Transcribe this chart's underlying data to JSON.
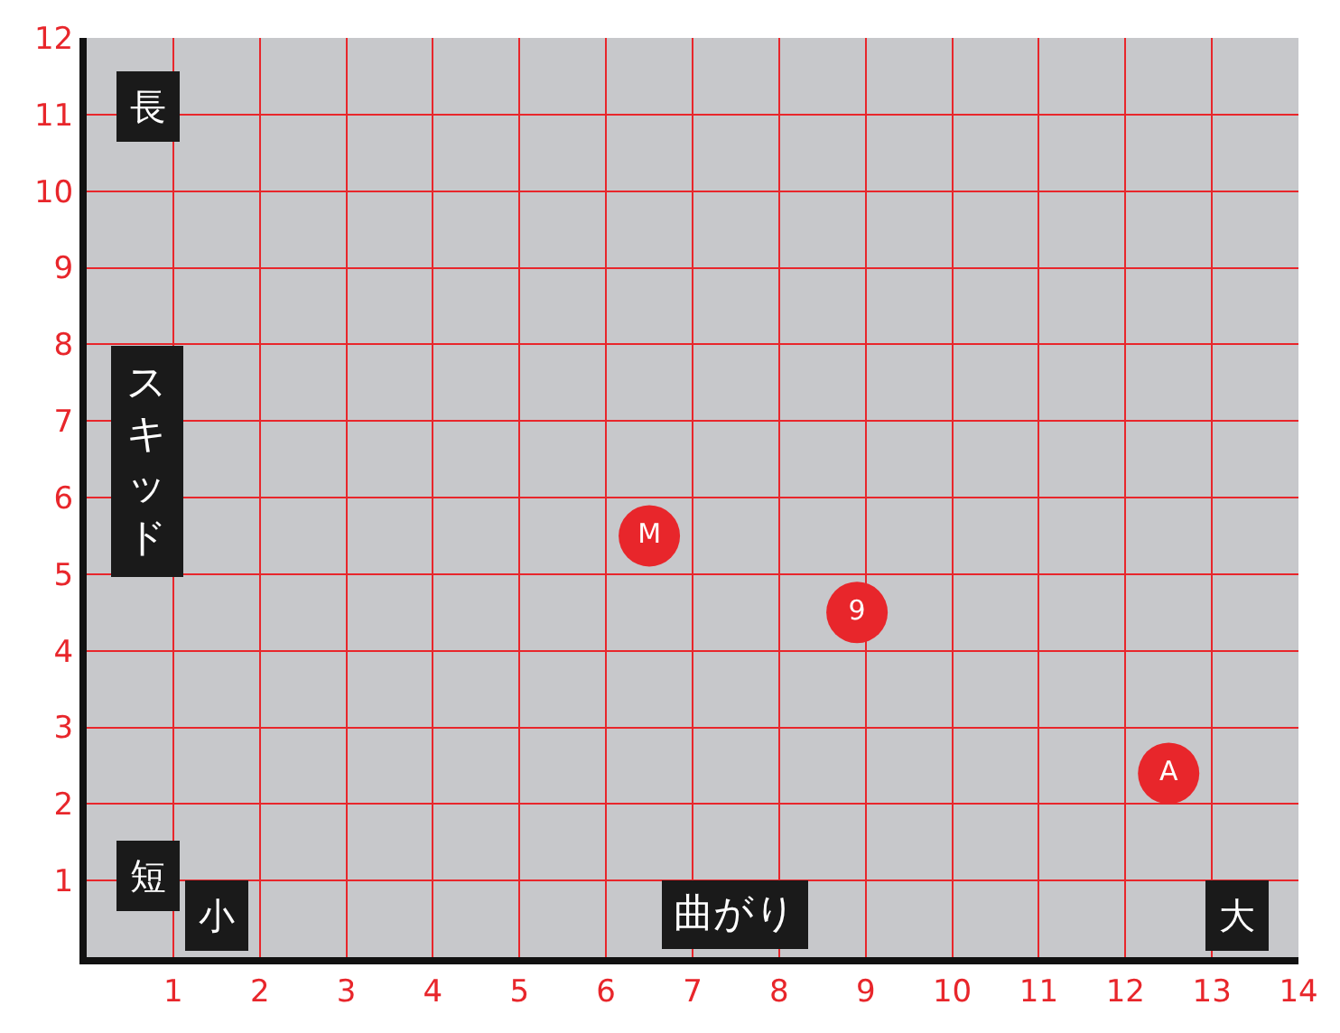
{
  "chart_data": {
    "type": "scatter",
    "xlabel": "曲がり",
    "ylabel": "スキッド",
    "annotations": [
      "長",
      "短",
      "小",
      "大"
    ],
    "series": [
      {
        "name": "M",
        "color": "#e8262b",
        "x": [
          6.5
        ],
        "values": [
          5.5
        ]
      },
      {
        "name": "9",
        "color": "#e8262b",
        "x": [
          8.9
        ],
        "values": [
          4.5
        ]
      },
      {
        "name": "A",
        "color": "#e8262b",
        "x": [
          12.5
        ],
        "values": [
          2.4
        ]
      }
    ],
    "xlim": [
      0,
      14
    ],
    "ylim": [
      0,
      12
    ],
    "xticks": [
      1,
      2,
      3,
      4,
      5,
      6,
      7,
      8,
      9,
      10,
      11,
      12,
      13,
      14
    ],
    "yticks": [
      1,
      2,
      3,
      4,
      5,
      6,
      7,
      8,
      9,
      10,
      11,
      12
    ],
    "grid": true,
    "legend": false,
    "marker": "circle"
  }
}
